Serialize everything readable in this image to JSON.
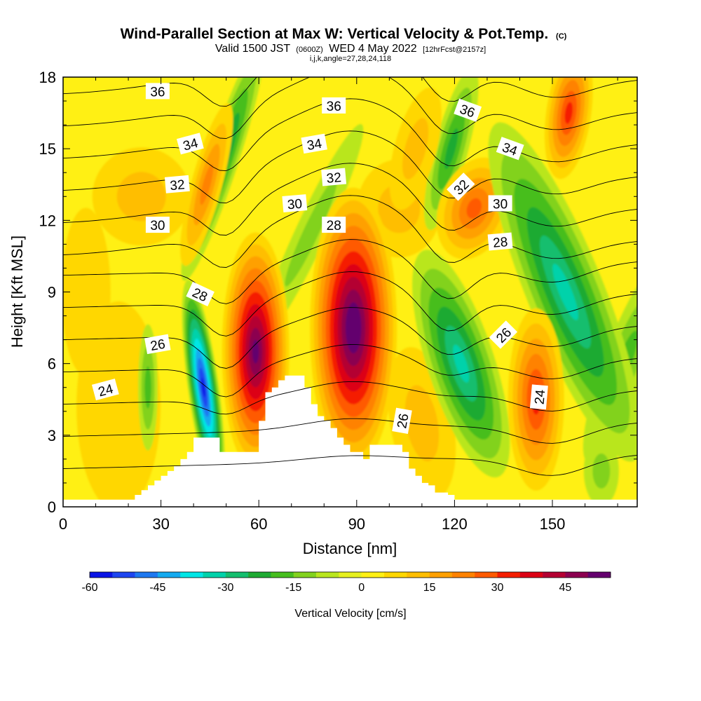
{
  "title": {
    "main": "Wind-Parallel Section at Max W: Vertical Velocity & Pot.Temp.",
    "main_sup": "(C)",
    "sub_a": "Valid 1500 JST",
    "sub_b": "(0600Z)",
    "sub_c": "WED 4 May 2022",
    "sub_d": "[12hrFcst@2157z]",
    "sub2": "i,j,k,angle=27,28,24,118"
  },
  "chart_data": {
    "type": "heatmap",
    "xlabel": "Distance [nm]",
    "ylabel": "Height [Kft MSL]",
    "xlim": [
      0,
      176
    ],
    "ylim": [
      0,
      18
    ],
    "x_ticks": [
      0,
      30,
      60,
      90,
      120,
      150
    ],
    "y_ticks": [
      0,
      3,
      6,
      9,
      12,
      15,
      18
    ],
    "colorbar": {
      "label": "Vertical Velocity [cm/s]",
      "range": [
        -60,
        55
      ],
      "step": 5,
      "tick_values": [
        -60,
        -45,
        -30,
        -15,
        0,
        15,
        30,
        45
      ],
      "colors": [
        "#0a14e6",
        "#1e46f0",
        "#1e78f0",
        "#14aaf0",
        "#00e6e6",
        "#00d2aa",
        "#14be6e",
        "#1eaa32",
        "#46be1e",
        "#82d21e",
        "#b9e61e",
        "#e6f01e",
        "#fff014",
        "#ffd700",
        "#ffbe00",
        "#ffa000",
        "#ff8200",
        "#ff5a00",
        "#f51e00",
        "#dc0014",
        "#b40032",
        "#8c0050",
        "#64006e"
      ]
    },
    "updrafts_cm_s": [
      {
        "x": 59,
        "height": 6.5,
        "peak": 50
      },
      {
        "x": 89,
        "height": 7.5,
        "peak": 55
      },
      {
        "x": 145,
        "height": 4.5,
        "peak": 30
      },
      {
        "x": 155,
        "height": 16.5,
        "peak": 30
      },
      {
        "x": 126,
        "height": 12.5,
        "peak": 25
      },
      {
        "x": 44,
        "height": 13.5,
        "peak": 20
      }
    ],
    "downdrafts_cm_s": [
      {
        "x": 43,
        "height": 5,
        "peak": -55
      },
      {
        "x": 122,
        "height": 6,
        "peak": -30
      },
      {
        "x": 154,
        "height": 9,
        "peak": -30
      }
    ],
    "terrain_kft": {
      "x": [
        0,
        22,
        24,
        26,
        28,
        30,
        32,
        34,
        36,
        38,
        40,
        44,
        46,
        48,
        52,
        56,
        58,
        60,
        62,
        64,
        66,
        68,
        70,
        72,
        74,
        76,
        78,
        80,
        82,
        84,
        86,
        88,
        90,
        92,
        94,
        96,
        98,
        100,
        102,
        104,
        106,
        108,
        110,
        112,
        114,
        116,
        118,
        120,
        176
      ],
      "height": [
        0.3,
        0.5,
        0.7,
        0.9,
        1.1,
        1.3,
        1.5,
        1.7,
        2.0,
        2.3,
        2.9,
        2.9,
        2.9,
        2.3,
        2.3,
        2.3,
        2.3,
        3.6,
        4.8,
        5.0,
        5.3,
        5.5,
        5.5,
        5.5,
        5.0,
        4.3,
        3.8,
        3.6,
        3.3,
        2.9,
        2.6,
        2.3,
        2.3,
        2.0,
        2.6,
        2.6,
        2.6,
        2.6,
        2.6,
        2.3,
        1.6,
        1.3,
        1.0,
        0.9,
        0.6,
        0.6,
        0.5,
        0.3,
        0.3
      ]
    },
    "theta_contours_C": {
      "levels": [
        22,
        23,
        24,
        25,
        26,
        27,
        28,
        29,
        30,
        31,
        32,
        33,
        34,
        35,
        36,
        37
      ],
      "labels": [
        {
          "level": "24",
          "text": "24",
          "x": 13,
          "height": 4.9,
          "angle": -15
        },
        {
          "level": "26",
          "text": "26",
          "x": 29,
          "height": 6.8,
          "angle": -10
        },
        {
          "level": "28",
          "text": "28",
          "x": 42,
          "height": 8.9,
          "angle": 25
        },
        {
          "level": "30",
          "text": "30",
          "x": 29,
          "height": 11.8,
          "angle": 0
        },
        {
          "level": "32",
          "text": "32",
          "x": 35,
          "height": 13.5,
          "angle": -5
        },
        {
          "level": "34",
          "text": "34",
          "x": 39,
          "height": 15.2,
          "angle": -15
        },
        {
          "level": "36",
          "text": "36",
          "x": 29,
          "height": 17.4,
          "angle": 0
        },
        {
          "level": "28",
          "text": "28",
          "x": 83,
          "height": 11.8,
          "angle": 0
        },
        {
          "level": "30",
          "text": "30",
          "x": 71,
          "height": 12.7,
          "angle": -5
        },
        {
          "level": "32",
          "text": "32",
          "x": 83,
          "height": 13.8,
          "angle": -5
        },
        {
          "level": "34",
          "text": "34",
          "x": 77,
          "height": 15.2,
          "angle": -10
        },
        {
          "level": "36",
          "text": "36",
          "x": 83,
          "height": 16.8,
          "angle": 0
        },
        {
          "level": "26",
          "text": "26",
          "x": 104,
          "height": 3.6,
          "angle": -80
        },
        {
          "level": "26",
          "text": "26",
          "x": 135,
          "height": 7.2,
          "angle": -45
        },
        {
          "level": "24",
          "text": "24",
          "x": 146,
          "height": 4.6,
          "angle": -85
        },
        {
          "level": "28",
          "text": "28",
          "x": 134,
          "height": 11.1,
          "angle": -5
        },
        {
          "level": "30",
          "text": "30",
          "x": 134,
          "height": 12.7,
          "angle": 0
        },
        {
          "level": "32",
          "text": "32",
          "x": 122,
          "height": 13.4,
          "angle": -45
        },
        {
          "level": "34",
          "text": "34",
          "x": 137,
          "height": 15,
          "angle": 20
        },
        {
          "level": "36",
          "text": "36",
          "x": 124,
          "height": 16.6,
          "angle": 20
        }
      ]
    }
  }
}
